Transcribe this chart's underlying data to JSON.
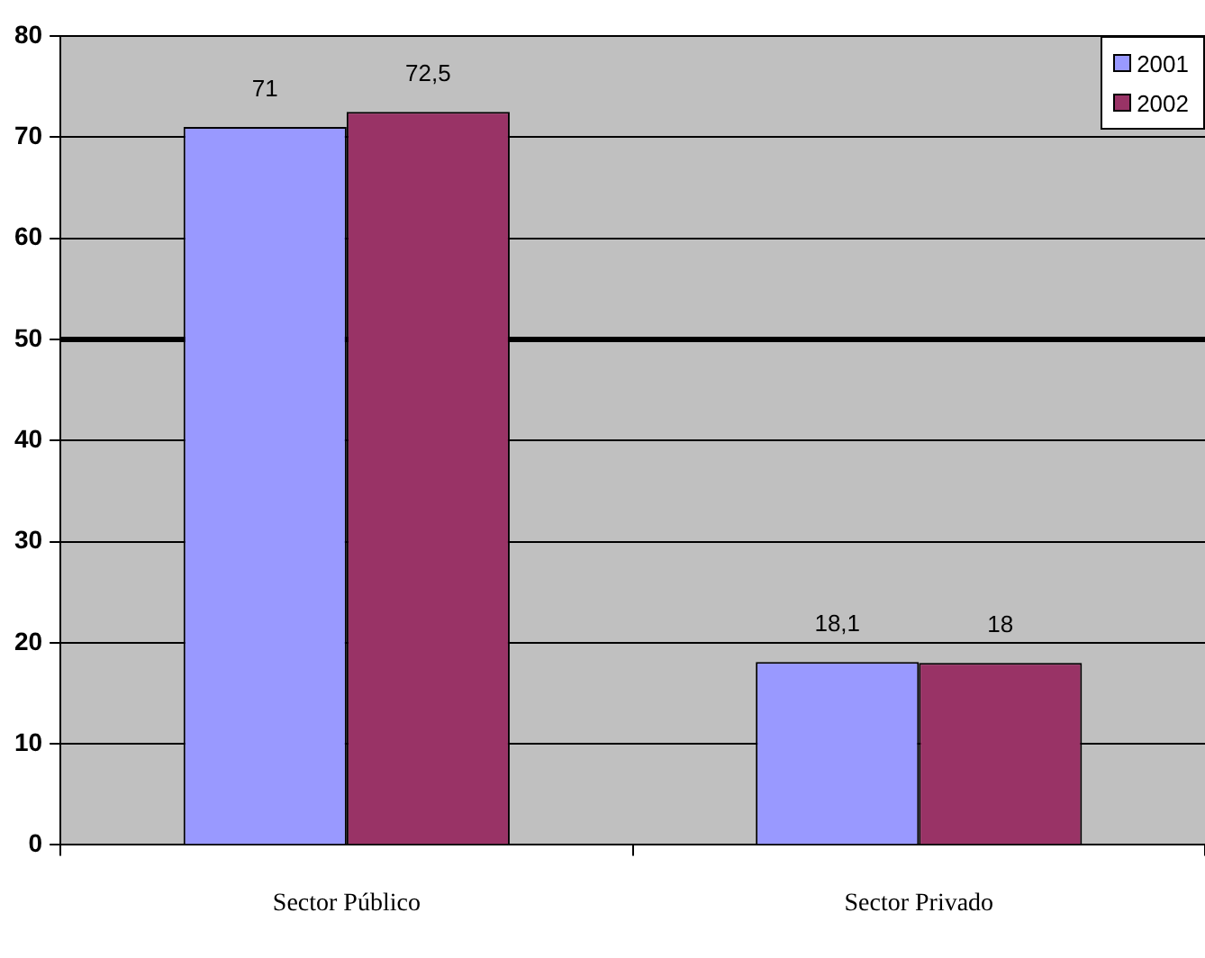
{
  "chart_data": {
    "type": "bar",
    "categories": [
      "Sector Público",
      "Sector Privado"
    ],
    "series": [
      {
        "name": "2001",
        "color": "#9999ff",
        "values": [
          71,
          18.1
        ],
        "value_labels": [
          "71",
          "18,1"
        ]
      },
      {
        "name": "2002",
        "color": "#993366",
        "values": [
          72.5,
          18
        ],
        "value_labels": [
          "72,5",
          "18"
        ]
      }
    ],
    "ylim": [
      0,
      80
    ],
    "yticks": [
      0,
      10,
      20,
      30,
      40,
      50,
      60,
      70,
      80
    ],
    "grid": "y",
    "legend": "top right",
    "ref_lines": [
      {
        "axis": "y",
        "value": 50,
        "color": "#000000"
      }
    ]
  }
}
